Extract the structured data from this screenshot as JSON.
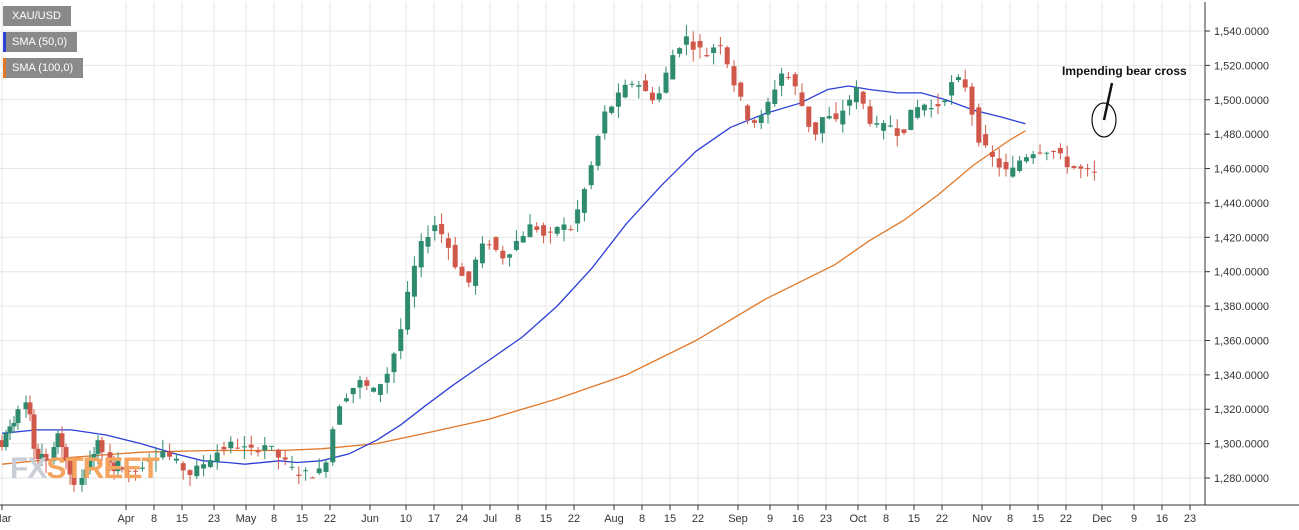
{
  "legend": {
    "main": "XAU/USD",
    "sma50": "SMA (50,0)",
    "sma100": "SMA (100,0)"
  },
  "watermark": {
    "part1": "FX",
    "part2": "STREET"
  },
  "colors": {
    "up": "#2e8b6f",
    "down": "#d0584a",
    "sma50": "#2d3fd6",
    "sma100": "#e0782a",
    "grid": "#e6e6e6",
    "axis": "#333333"
  },
  "annotation": {
    "text": "Impending bear  cross"
  },
  "chart_data": {
    "type": "candlestick",
    "title": "XAU/USD",
    "ylim": [
      1270,
      1560
    ],
    "y_ticks": [
      "1,280.0000",
      "1,300.0000",
      "1,320.0000",
      "1,340.0000",
      "1,360.0000",
      "1,380.0000",
      "1,400.0000",
      "1,420.0000",
      "1,440.0000",
      "1,460.0000",
      "1,480.0000",
      "1,500.0000",
      "1,520.0000",
      "1,540.0000"
    ],
    "y_tick_values": [
      1280,
      1300,
      1320,
      1340,
      1360,
      1380,
      1400,
      1420,
      1440,
      1460,
      1480,
      1500,
      1520,
      1540
    ],
    "x_range_days": [
      0,
      269
    ],
    "x_ticks": [
      {
        "label": "Mar",
        "day": 0
      },
      {
        "label": "Apr",
        "day": 31
      },
      {
        "label": "8",
        "day": 38
      },
      {
        "label": "15",
        "day": 45
      },
      {
        "label": "23",
        "day": 53
      },
      {
        "label": "May",
        "day": 61
      },
      {
        "label": "8",
        "day": 68
      },
      {
        "label": "15",
        "day": 75
      },
      {
        "label": "22",
        "day": 82
      },
      {
        "label": "Jun",
        "day": 92
      },
      {
        "label": "10",
        "day": 101
      },
      {
        "label": "17",
        "day": 108
      },
      {
        "label": "24",
        "day": 115
      },
      {
        "label": "Jul",
        "day": 122
      },
      {
        "label": "8",
        "day": 129
      },
      {
        "label": "15",
        "day": 136
      },
      {
        "label": "22",
        "day": 143
      },
      {
        "label": "Aug",
        "day": 153
      },
      {
        "label": "8",
        "day": 160
      },
      {
        "label": "15",
        "day": 167
      },
      {
        "label": "22",
        "day": 174
      },
      {
        "label": "Sep",
        "day": 184
      },
      {
        "label": "9",
        "day": 192
      },
      {
        "label": "16",
        "day": 199
      },
      {
        "label": "23",
        "day": 206
      },
      {
        "label": "Oct",
        "day": 214
      },
      {
        "label": "8",
        "day": 221
      },
      {
        "label": "15",
        "day": 228
      },
      {
        "label": "22",
        "day": 235
      },
      {
        "label": "Nov",
        "day": 245
      },
      {
        "label": "8",
        "day": 252
      },
      {
        "label": "15",
        "day": 259
      },
      {
        "label": "22",
        "day": 266
      },
      {
        "label": "Dec",
        "day": 275
      },
      {
        "label": "9",
        "day": 283
      },
      {
        "label": "16",
        "day": 290
      },
      {
        "label": "23",
        "day": 297
      }
    ],
    "candles": [
      {
        "day": 0,
        "o": 1302,
        "h": 1305,
        "c": 1298,
        "l": 1296
      },
      {
        "day": 1,
        "o": 1298,
        "h": 1308,
        "c": 1306,
        "l": 1296
      },
      {
        "day": 2,
        "o": 1306,
        "h": 1314,
        "c": 1310,
        "l": 1302
      },
      {
        "day": 3,
        "o": 1310,
        "h": 1316,
        "c": 1312,
        "l": 1307
      },
      {
        "day": 4,
        "o": 1312,
        "h": 1322,
        "c": 1320,
        "l": 1308
      },
      {
        "day": 6,
        "o": 1320,
        "h": 1328,
        "c": 1324,
        "l": 1315
      },
      {
        "day": 7,
        "o": 1324,
        "h": 1328,
        "c": 1317,
        "l": 1313
      },
      {
        "day": 8,
        "o": 1317,
        "h": 1320,
        "c": 1297,
        "l": 1290
      },
      {
        "day": 9,
        "o": 1297,
        "h": 1300,
        "c": 1291,
        "l": 1286
      },
      {
        "day": 10,
        "o": 1291,
        "h": 1300,
        "c": 1294,
        "l": 1287
      },
      {
        "day": 11,
        "o": 1294,
        "h": 1297,
        "c": 1290,
        "l": 1283
      },
      {
        "day": 13,
        "o": 1290,
        "h": 1301,
        "c": 1298,
        "l": 1288
      },
      {
        "day": 14,
        "o": 1298,
        "h": 1308,
        "c": 1306,
        "l": 1294
      },
      {
        "day": 15,
        "o": 1306,
        "h": 1310,
        "c": 1298,
        "l": 1292
      },
      {
        "day": 16,
        "o": 1298,
        "h": 1300,
        "c": 1290,
        "l": 1285
      },
      {
        "day": 17,
        "o": 1290,
        "h": 1292,
        "c": 1282,
        "l": 1276
      },
      {
        "day": 18,
        "o": 1282,
        "h": 1286,
        "c": 1276,
        "l": 1272
      },
      {
        "day": 20,
        "o": 1276,
        "h": 1285,
        "c": 1280,
        "l": 1272
      },
      {
        "day": 21,
        "o": 1280,
        "h": 1288,
        "c": 1285,
        "l": 1276
      },
      {
        "day": 22,
        "o": 1285,
        "h": 1296,
        "c": 1292,
        "l": 1282
      },
      {
        "day": 23,
        "o": 1292,
        "h": 1298,
        "c": 1294,
        "l": 1286
      },
      {
        "day": 24,
        "o": 1294,
        "h": 1305,
        "c": 1302,
        "l": 1288
      },
      {
        "day": 25,
        "o": 1302,
        "h": 1304,
        "c": 1295,
        "l": 1290
      },
      {
        "day": 27,
        "o": 1295,
        "h": 1300,
        "c": 1289,
        "l": 1284
      },
      {
        "day": 28,
        "o": 1289,
        "h": 1293,
        "c": 1284,
        "l": 1279
      },
      {
        "day": 29,
        "o": 1284,
        "h": 1295,
        "c": 1290,
        "l": 1281
      }
    ],
    "sma50": [
      [
        0,
        1306
      ],
      [
        10,
        1308
      ],
      [
        20,
        1308
      ],
      [
        30,
        1305
      ],
      [
        40,
        1300
      ],
      [
        50,
        1294
      ],
      [
        58,
        1290
      ],
      [
        65,
        1289
      ],
      [
        70,
        1288
      ],
      [
        80,
        1290
      ],
      [
        85,
        1289
      ],
      [
        92,
        1290
      ],
      [
        100,
        1294
      ],
      [
        108,
        1302
      ],
      [
        115,
        1311
      ],
      [
        122,
        1322
      ],
      [
        130,
        1334
      ],
      [
        140,
        1348
      ],
      [
        150,
        1362
      ],
      [
        160,
        1380
      ],
      [
        170,
        1402
      ],
      [
        180,
        1428
      ],
      [
        190,
        1450
      ],
      [
        200,
        1470
      ],
      [
        210,
        1484
      ],
      [
        220,
        1492
      ],
      [
        230,
        1498
      ],
      [
        238,
        1506
      ],
      [
        244,
        1508
      ],
      [
        250,
        1506
      ],
      [
        258,
        1504
      ],
      [
        265,
        1504
      ],
      [
        272,
        1500
      ],
      [
        280,
        1494
      ],
      [
        288,
        1490
      ],
      [
        295,
        1486
      ]
    ],
    "sma100": [
      [
        0,
        1288
      ],
      [
        20,
        1292
      ],
      [
        40,
        1295
      ],
      [
        60,
        1296
      ],
      [
        80,
        1296
      ],
      [
        92,
        1297
      ],
      [
        108,
        1300
      ],
      [
        122,
        1306
      ],
      [
        140,
        1314
      ],
      [
        160,
        1326
      ],
      [
        180,
        1340
      ],
      [
        200,
        1360
      ],
      [
        220,
        1384
      ],
      [
        240,
        1404
      ],
      [
        250,
        1418
      ],
      [
        260,
        1430
      ],
      [
        270,
        1445
      ],
      [
        280,
        1462
      ],
      [
        290,
        1476
      ],
      [
        295,
        1482
      ]
    ]
  }
}
